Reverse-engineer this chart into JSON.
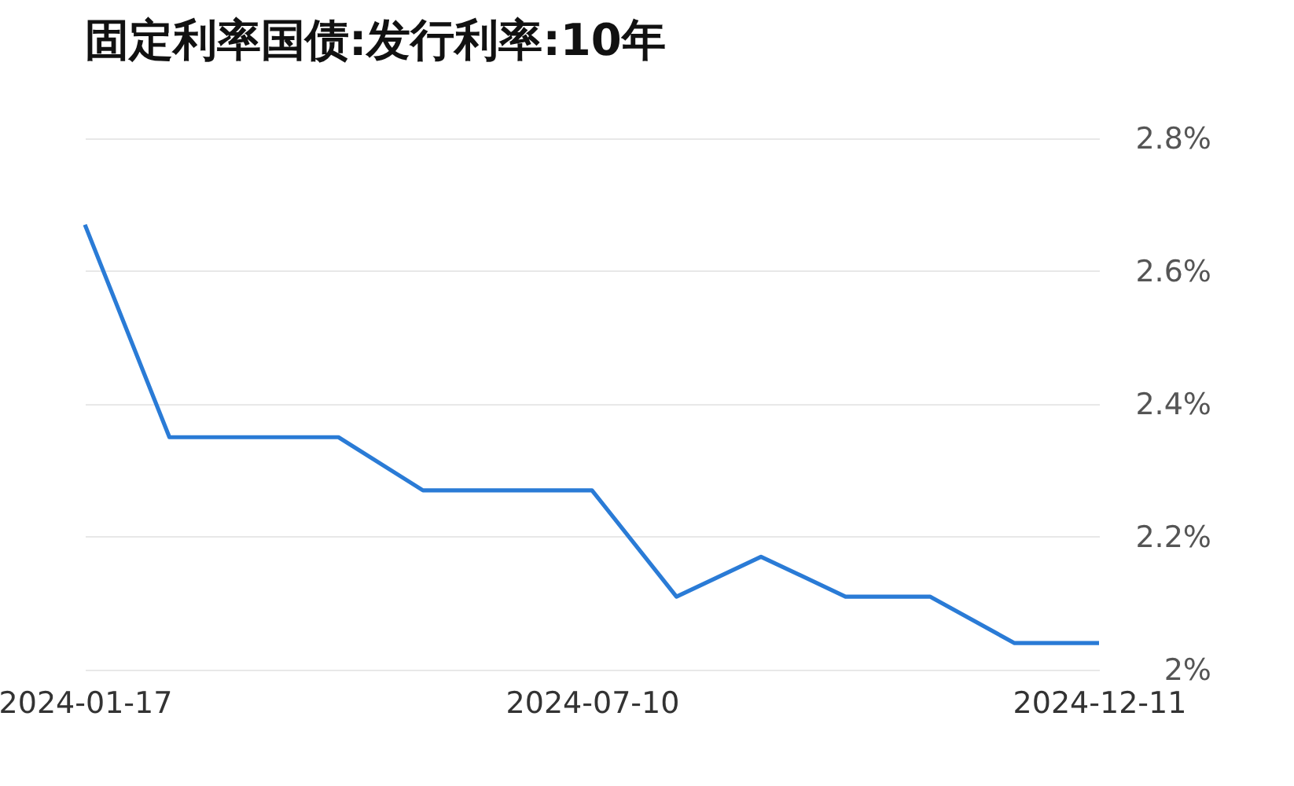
{
  "chart_data": {
    "type": "line",
    "title": "固定利率国债:发行利率:10年",
    "categories": [
      "2024-01-17",
      null,
      null,
      null,
      null,
      null,
      "2024-07-10",
      null,
      null,
      null,
      null,
      null,
      "2024-12-11"
    ],
    "values": [
      2.67,
      2.35,
      2.35,
      2.35,
      2.27,
      2.27,
      2.27,
      2.11,
      2.17,
      2.11,
      2.11,
      2.04,
      2.04
    ],
    "color": "#2a7bd6",
    "ylim": [
      2.0,
      2.8
    ],
    "yticks": [
      {
        "value": 2.0,
        "label": "2%"
      },
      {
        "value": 2.2,
        "label": "2.2%"
      },
      {
        "value": 2.4,
        "label": "2.4%"
      },
      {
        "value": 2.6,
        "label": "2.6%"
      },
      {
        "value": 2.8,
        "label": "2.8%"
      }
    ],
    "grid": "y"
  }
}
